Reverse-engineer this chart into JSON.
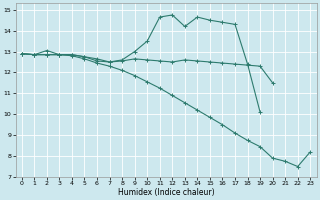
{
  "xlabel": "Humidex (Indice chaleur)",
  "xlim": [
    -0.5,
    23.5
  ],
  "ylim": [
    7,
    15.3
  ],
  "yticks": [
    7,
    8,
    9,
    10,
    11,
    12,
    13,
    14,
    15
  ],
  "xticks": [
    0,
    1,
    2,
    3,
    4,
    5,
    6,
    7,
    8,
    9,
    10,
    11,
    12,
    13,
    14,
    15,
    16,
    17,
    18,
    19,
    20,
    21,
    22,
    23
  ],
  "background_color": "#cde8ee",
  "grid_color": "#ffffff",
  "line_color": "#2d7b6e",
  "line1_y": [
    12.9,
    12.85,
    13.05,
    12.85,
    12.85,
    12.75,
    12.55,
    12.5,
    12.6,
    13.0,
    13.5,
    14.65,
    14.75,
    14.2,
    14.65,
    14.5,
    14.4,
    14.3,
    12.4,
    10.1,
    null,
    null,
    null,
    null
  ],
  "line2_y": [
    12.9,
    12.85,
    12.85,
    12.85,
    12.85,
    12.75,
    12.65,
    12.5,
    12.55,
    12.65,
    12.6,
    12.55,
    12.5,
    12.6,
    12.55,
    12.5,
    12.45,
    12.4,
    12.35,
    12.3,
    11.5,
    null,
    null,
    null
  ],
  "line3_y": [
    12.9,
    12.85,
    12.85,
    12.85,
    12.8,
    12.65,
    12.45,
    12.3,
    12.1,
    11.85,
    11.55,
    11.25,
    10.9,
    10.55,
    10.2,
    9.85,
    9.5,
    9.1,
    8.75,
    8.45,
    7.9,
    7.75,
    7.5,
    8.2
  ]
}
